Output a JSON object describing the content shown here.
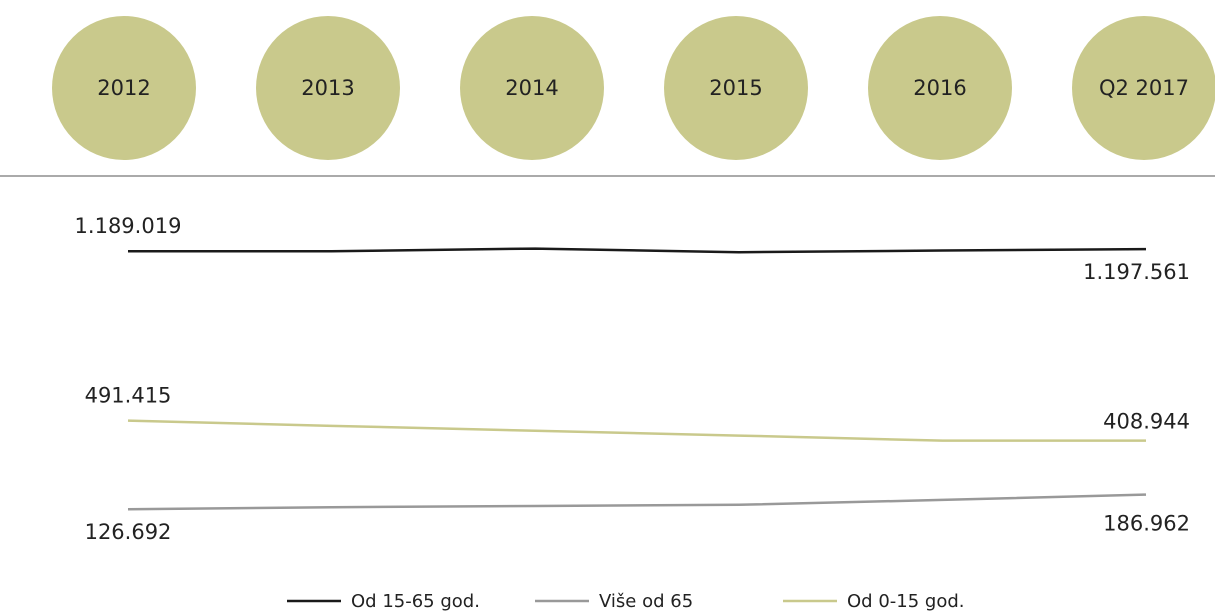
{
  "chart_data": {
    "type": "line",
    "categories": [
      "2012",
      "2013",
      "2014",
      "2015",
      "2016",
      "Q2 2017"
    ],
    "ylim": [
      0,
      1400000
    ],
    "series": [
      {
        "name": "Od 15-65 god.",
        "color": "#1a1a1a",
        "values": [
          1189019,
          1189000,
          1200000,
          1185000,
          1192000,
          1197561
        ],
        "value_labels": [
          "1.189.019",
          null,
          null,
          null,
          null,
          "1.197.561"
        ]
      },
      {
        "name": "Više od 65",
        "color": "#999999",
        "values": [
          126692,
          135000,
          140000,
          145000,
          165000,
          186962
        ],
        "value_labels": [
          "126.692",
          null,
          null,
          null,
          null,
          "186.962"
        ]
      },
      {
        "name": "Od 0-15 god.",
        "color": "#c9c98c",
        "values": [
          491415,
          470000,
          450000,
          430000,
          409000,
          408944
        ],
        "value_labels": [
          "491.415",
          null,
          null,
          null,
          null,
          "408.944"
        ]
      }
    ]
  }
}
